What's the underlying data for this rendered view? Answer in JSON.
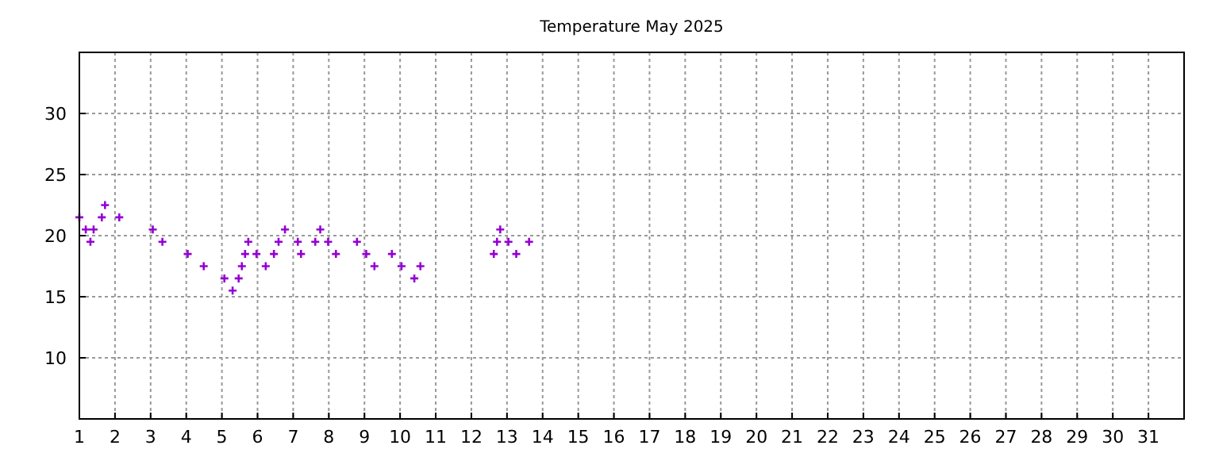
{
  "chart_data": {
    "type": "scatter",
    "title": "Temperature May 2025",
    "x": [
      1.0,
      1.18,
      1.31,
      1.4,
      1.63,
      1.72,
      2.12,
      3.06,
      3.33,
      4.04,
      4.49,
      5.07,
      5.3,
      5.47,
      5.56,
      5.65,
      5.74,
      5.97,
      6.23,
      6.46,
      6.59,
      6.77,
      7.13,
      7.22,
      7.62,
      7.76,
      7.98,
      8.2,
      8.79,
      9.05,
      9.28,
      9.77,
      10.04,
      10.4,
      10.57,
      12.63,
      12.72,
      12.81,
      13.04,
      13.26,
      13.62
    ],
    "values": [
      21.5,
      20.5,
      19.5,
      20.5,
      21.5,
      22.5,
      21.5,
      20.5,
      19.5,
      18.5,
      17.5,
      16.5,
      15.5,
      16.5,
      17.5,
      18.5,
      19.5,
      18.5,
      17.5,
      18.5,
      19.5,
      20.5,
      19.5,
      18.5,
      19.5,
      20.5,
      19.5,
      18.5,
      19.5,
      18.5,
      17.5,
      18.5,
      17.5,
      16.5,
      17.5,
      18.5,
      19.5,
      20.5,
      19.5,
      18.5,
      19.5
    ],
    "color": "#9400d3",
    "marker": "cross",
    "grid": true,
    "xlim": [
      1,
      32
    ],
    "xticks": [
      1,
      2,
      3,
      4,
      5,
      6,
      7,
      8,
      9,
      10,
      11,
      12,
      13,
      14,
      15,
      16,
      17,
      18,
      19,
      20,
      21,
      22,
      23,
      24,
      25,
      26,
      27,
      28,
      29,
      30,
      31
    ],
    "ylim": [
      5,
      35
    ],
    "yticks": [
      10,
      15,
      20,
      25,
      30
    ]
  }
}
